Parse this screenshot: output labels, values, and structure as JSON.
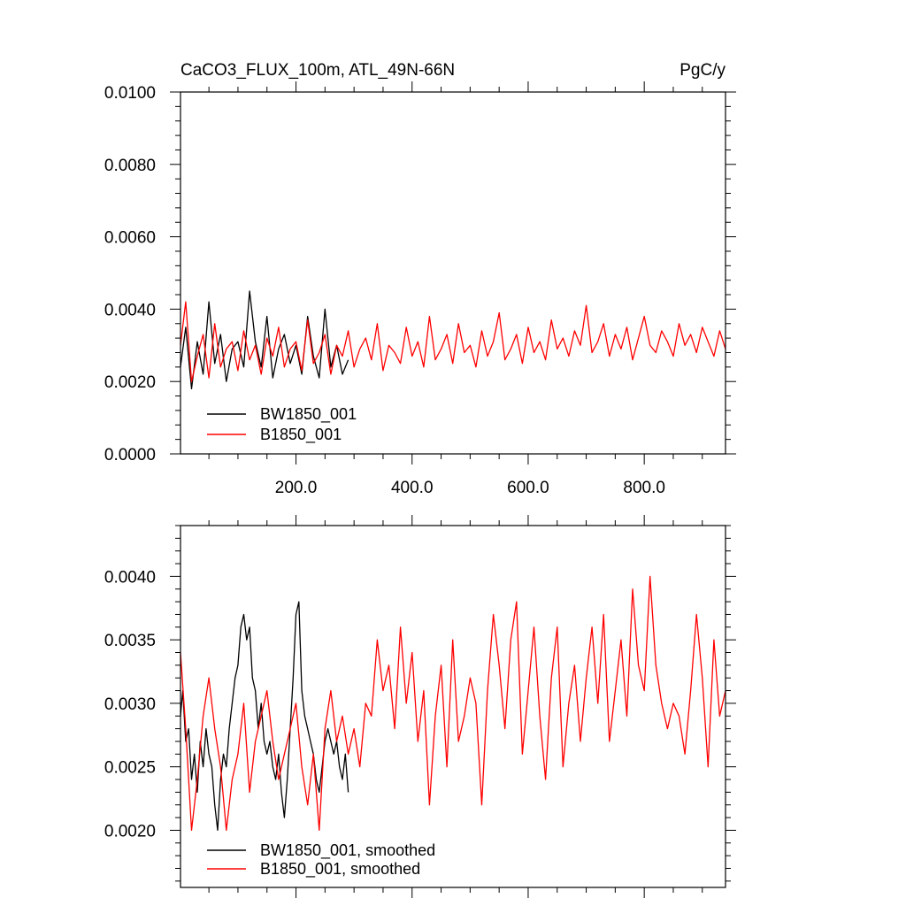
{
  "chart_data": [
    {
      "type": "line",
      "title": "CaCO3_FLUX_100m, ATL_49N-66N",
      "units": "PgC/y",
      "xlim": [
        1,
        940
      ],
      "ylim": [
        0.0,
        0.01
      ],
      "x_tick_labels": [
        {
          "value": 200,
          "label": "200.0"
        },
        {
          "value": 400,
          "label": "400.0"
        },
        {
          "value": 600,
          "label": "600.0"
        },
        {
          "value": 800,
          "label": "800.0"
        }
      ],
      "y_tick_labels": [
        {
          "value": 0.0,
          "label": "0.0000"
        },
        {
          "value": 0.002,
          "label": "0.0020"
        },
        {
          "value": 0.004,
          "label": "0.0040"
        },
        {
          "value": 0.006,
          "label": "0.0060"
        },
        {
          "value": 0.008,
          "label": "0.0080"
        },
        {
          "value": 0.01,
          "label": "0.0100"
        }
      ],
      "legend_position": "bottom-left",
      "series": [
        {
          "name": "BW1850_001",
          "color": "#000000",
          "x": [
            1,
            10,
            20,
            30,
            40,
            50,
            60,
            70,
            80,
            90,
            100,
            110,
            120,
            130,
            140,
            150,
            160,
            170,
            180,
            190,
            200,
            210,
            220,
            230,
            240,
            250,
            260,
            270,
            280,
            290
          ],
          "values": [
            0.0024,
            0.0035,
            0.0018,
            0.0031,
            0.0022,
            0.0042,
            0.0025,
            0.0033,
            0.002,
            0.0029,
            0.0031,
            0.0024,
            0.0045,
            0.0031,
            0.0024,
            0.0038,
            0.0021,
            0.0029,
            0.0033,
            0.0025,
            0.003,
            0.0022,
            0.0038,
            0.0027,
            0.0021,
            0.004,
            0.0024,
            0.003,
            0.0022,
            0.0026
          ]
        },
        {
          "name": "B1850_001",
          "color": "#ff0000",
          "x": [
            1,
            10,
            20,
            30,
            40,
            50,
            60,
            70,
            80,
            90,
            100,
            110,
            120,
            130,
            140,
            150,
            160,
            170,
            180,
            190,
            200,
            210,
            220,
            230,
            240,
            250,
            260,
            270,
            280,
            290,
            300,
            310,
            320,
            330,
            340,
            350,
            360,
            370,
            380,
            390,
            400,
            410,
            420,
            430,
            440,
            450,
            460,
            470,
            480,
            490,
            500,
            510,
            520,
            530,
            540,
            550,
            560,
            570,
            580,
            590,
            600,
            610,
            620,
            630,
            640,
            650,
            660,
            670,
            680,
            690,
            700,
            710,
            720,
            730,
            740,
            750,
            760,
            770,
            780,
            790,
            800,
            810,
            820,
            830,
            840,
            850,
            860,
            870,
            880,
            890,
            900,
            910,
            920,
            930,
            940
          ],
          "values": [
            0.003,
            0.0042,
            0.002,
            0.0027,
            0.0033,
            0.0021,
            0.0036,
            0.0024,
            0.0029,
            0.0031,
            0.0023,
            0.0034,
            0.0026,
            0.003,
            0.0022,
            0.0032,
            0.0027,
            0.0035,
            0.0024,
            0.0029,
            0.0031,
            0.0023,
            0.0037,
            0.0025,
            0.0028,
            0.0033,
            0.0022,
            0.003,
            0.0027,
            0.0034,
            0.0024,
            0.0029,
            0.0032,
            0.0026,
            0.0036,
            0.0023,
            0.003,
            0.0028,
            0.0025,
            0.0035,
            0.0027,
            0.0031,
            0.0024,
            0.0038,
            0.0026,
            0.0029,
            0.0033,
            0.0025,
            0.0036,
            0.0028,
            0.003,
            0.0024,
            0.0034,
            0.0027,
            0.0031,
            0.0039,
            0.0026,
            0.0029,
            0.0033,
            0.0025,
            0.0035,
            0.0028,
            0.0031,
            0.0026,
            0.0037,
            0.0029,
            0.0032,
            0.0027,
            0.0034,
            0.003,
            0.0041,
            0.0028,
            0.0031,
            0.0036,
            0.0027,
            0.0033,
            0.0029,
            0.0035,
            0.0026,
            0.0032,
            0.0038,
            0.003,
            0.0028,
            0.0034,
            0.0031,
            0.0027,
            0.0036,
            0.003,
            0.0033,
            0.0028,
            0.0035,
            0.0031,
            0.0027,
            0.0034,
            0.0029
          ]
        }
      ]
    },
    {
      "type": "line",
      "xlim": [
        1,
        940
      ],
      "ylim": [
        0.00155,
        0.0044
      ],
      "y_tick_labels": [
        {
          "value": 0.002,
          "label": "0.0020"
        },
        {
          "value": 0.0025,
          "label": "0.0025"
        },
        {
          "value": 0.003,
          "label": "0.0030"
        },
        {
          "value": 0.0035,
          "label": "0.0035"
        },
        {
          "value": 0.004,
          "label": "0.0040"
        }
      ],
      "legend_position": "bottom-left",
      "series": [
        {
          "name": "BW1850_001, smoothed",
          "color": "#000000",
          "x": [
            1,
            5,
            10,
            15,
            20,
            25,
            30,
            35,
            40,
            45,
            50,
            55,
            60,
            65,
            70,
            75,
            80,
            85,
            90,
            95,
            100,
            105,
            110,
            115,
            120,
            125,
            130,
            135,
            140,
            145,
            150,
            155,
            160,
            165,
            170,
            175,
            180,
            185,
            190,
            195,
            200,
            205,
            210,
            215,
            220,
            225,
            230,
            235,
            240,
            245,
            250,
            255,
            260,
            265,
            270,
            275,
            280,
            285,
            290
          ],
          "values": [
            0.0029,
            0.0031,
            0.0027,
            0.0028,
            0.0024,
            0.0026,
            0.0023,
            0.0027,
            0.0025,
            0.0028,
            0.0026,
            0.0025,
            0.0022,
            0.002,
            0.0024,
            0.0026,
            0.0025,
            0.0028,
            0.003,
            0.0032,
            0.0033,
            0.0036,
            0.0037,
            0.0035,
            0.0036,
            0.0032,
            0.0031,
            0.0028,
            0.003,
            0.0027,
            0.0026,
            0.0027,
            0.0025,
            0.0024,
            0.0026,
            0.0023,
            0.0021,
            0.0024,
            0.0028,
            0.0032,
            0.0037,
            0.0038,
            0.0031,
            0.0029,
            0.0028,
            0.0027,
            0.0026,
            0.0024,
            0.0023,
            0.0025,
            0.0027,
            0.0028,
            0.0027,
            0.0026,
            0.0027,
            0.0025,
            0.0024,
            0.0026,
            0.0023
          ]
        },
        {
          "name": "B1850_001, smoothed",
          "color": "#ff0000",
          "x": [
            1,
            10,
            20,
            30,
            40,
            50,
            60,
            70,
            80,
            90,
            100,
            110,
            120,
            130,
            140,
            150,
            160,
            170,
            180,
            190,
            200,
            210,
            220,
            230,
            240,
            250,
            260,
            270,
            280,
            290,
            300,
            310,
            320,
            330,
            340,
            350,
            360,
            370,
            380,
            390,
            400,
            410,
            420,
            430,
            440,
            450,
            460,
            470,
            480,
            490,
            500,
            510,
            520,
            530,
            540,
            550,
            560,
            570,
            580,
            590,
            600,
            610,
            620,
            630,
            640,
            650,
            660,
            670,
            680,
            690,
            700,
            710,
            720,
            730,
            740,
            750,
            760,
            770,
            780,
            790,
            800,
            810,
            820,
            830,
            840,
            850,
            860,
            870,
            880,
            890,
            900,
            910,
            920,
            930,
            940
          ],
          "values": [
            0.0034,
            0.0028,
            0.002,
            0.0024,
            0.0029,
            0.0032,
            0.0028,
            0.0025,
            0.002,
            0.0024,
            0.0026,
            0.003,
            0.0023,
            0.0027,
            0.0029,
            0.0031,
            0.0027,
            0.0024,
            0.0026,
            0.0028,
            0.003,
            0.0025,
            0.0022,
            0.0026,
            0.002,
            0.0028,
            0.0031,
            0.0027,
            0.0029,
            0.0026,
            0.0028,
            0.0025,
            0.003,
            0.0029,
            0.0035,
            0.0031,
            0.0033,
            0.0028,
            0.0036,
            0.003,
            0.0034,
            0.0027,
            0.0031,
            0.0022,
            0.0029,
            0.0033,
            0.0025,
            0.0035,
            0.0027,
            0.0029,
            0.0032,
            0.003,
            0.0022,
            0.0031,
            0.0037,
            0.0033,
            0.0028,
            0.0035,
            0.0038,
            0.0026,
            0.0031,
            0.0036,
            0.0029,
            0.0024,
            0.0032,
            0.0036,
            0.0025,
            0.003,
            0.0033,
            0.0027,
            0.0032,
            0.0036,
            0.003,
            0.0037,
            0.0027,
            0.0031,
            0.0035,
            0.0029,
            0.0039,
            0.0033,
            0.0031,
            0.004,
            0.0033,
            0.003,
            0.0028,
            0.003,
            0.0029,
            0.0026,
            0.0031,
            0.0037,
            0.0032,
            0.0025,
            0.0035,
            0.0029,
            0.0031
          ]
        }
      ]
    }
  ]
}
